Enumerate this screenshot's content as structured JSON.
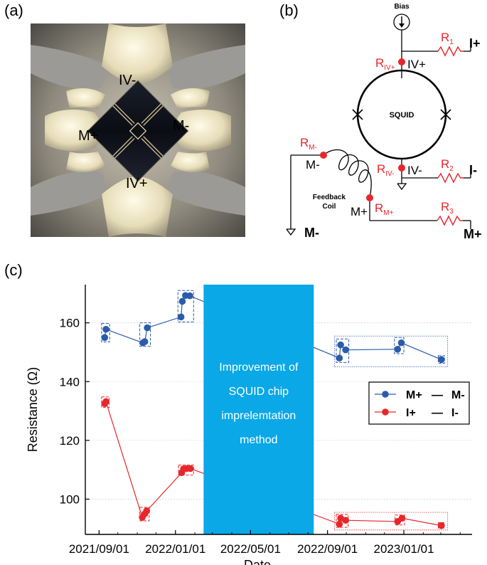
{
  "panels": {
    "a": "(a)",
    "b": "(b)",
    "c": "(c)"
  },
  "photo": {
    "labels": {
      "iv_minus": "IV-",
      "m_plus": "M+",
      "m_minus": "M-",
      "iv_plus": "IV+"
    }
  },
  "circuit": {
    "bias": "Bias",
    "squid": "SQUID",
    "iv_plus": "IV+",
    "iv_minus": "IV-",
    "r_iv_plus_main": "R",
    "r_iv_plus_sub": "IV+",
    "r_iv_minus_main": "R",
    "r_iv_minus_sub": "IV-",
    "r_m_minus_main": "R",
    "r_m_minus_sub": "M-",
    "r_m_plus_main": "R",
    "r_m_plus_sub": "M+",
    "m_minus_node": "M-",
    "m_plus_node": "M+",
    "feedback_line1": "Feedback",
    "feedback_line2": "Coil",
    "r1_main": "R",
    "r1_sub": "1",
    "r1_term": "I+",
    "r2_main": "R",
    "r2_sub": "2",
    "r2_term": "I-",
    "r3_main": "R",
    "r3_sub": "3",
    "r3_term": "M+",
    "m_minus_term": "M-",
    "accent": "#e8262b"
  },
  "chart_data": {
    "type": "scatter",
    "xlabel": "Date",
    "ylabel": "Resistance (Ω)",
    "xlim": [
      "2021-08-10",
      "2023-04-20"
    ],
    "ylim": [
      88,
      173
    ],
    "x_ticks": [
      "2021/09/01",
      "2022/01/01",
      "2022/05/01",
      "2022/09/01",
      "2023/01/01"
    ],
    "y_ticks": [
      100,
      120,
      140,
      160
    ],
    "grid": true,
    "legend_position": "center-right",
    "legend": [
      {
        "a": "M+",
        "dash": "—",
        "b": "M-",
        "color": "#2a5caa"
      },
      {
        "a": "I+",
        "dash": "—",
        "b": "I-",
        "color": "#e8262b"
      }
    ],
    "annotation": {
      "lines": [
        "Improvement of",
        "SQUID chip",
        "imprelemtation",
        "method"
      ],
      "x_range": [
        "2022-02-15",
        "2022-08-10"
      ],
      "color": "#0aa8e6"
    },
    "series": [
      {
        "name": "M+ — M-",
        "color": "#2a5caa",
        "points": [
          [
            "2021-09-10",
            155.0
          ],
          [
            "2021-09-12",
            157.8
          ],
          [
            "2021-11-10",
            153.2
          ],
          [
            "2021-11-13",
            153.6
          ],
          [
            "2021-11-17",
            158.3
          ],
          [
            "2022-01-10",
            162.0
          ],
          [
            "2022-01-12",
            167.3
          ],
          [
            "2022-01-17",
            169.3
          ],
          [
            "2022-01-24",
            169.2
          ],
          [
            "2022-09-20",
            148.0
          ],
          [
            "2022-09-22",
            152.5
          ],
          [
            "2022-09-30",
            150.8
          ],
          [
            "2022-12-22",
            151.0
          ],
          [
            "2022-12-28",
            153.2
          ],
          [
            "2023-03-02",
            147.5
          ]
        ],
        "boxes": [
          [
            "2021-09-05",
            "2021-09-18",
            153.5,
            159.8
          ],
          [
            "2021-11-05",
            "2021-11-22",
            152.0,
            160.0
          ],
          [
            "2022-01-05",
            "2022-01-30",
            160.3,
            171.0
          ],
          [
            "2022-09-15",
            "2022-10-05",
            146.5,
            154.5
          ],
          [
            "2022-12-17",
            "2023-01-01",
            149.5,
            155.0
          ],
          [
            "2023-02-25",
            "2023-03-07",
            146.2,
            148.8
          ]
        ],
        "group_box": [
          "2022-09-12",
          "2023-03-12",
          145.0,
          155.5
        ]
      },
      {
        "name": "I+ — I-",
        "color": "#e8262b",
        "points": [
          [
            "2021-09-10",
            132.5
          ],
          [
            "2021-09-12",
            133.2
          ],
          [
            "2021-11-09",
            93.8
          ],
          [
            "2021-11-13",
            95.0
          ],
          [
            "2021-11-16",
            96.0
          ],
          [
            "2022-01-11",
            109.0
          ],
          [
            "2022-01-14",
            110.3
          ],
          [
            "2022-01-19",
            110.4
          ],
          [
            "2022-01-25",
            110.4
          ],
          [
            "2022-09-20",
            91.5
          ],
          [
            "2022-09-22",
            93.5
          ],
          [
            "2022-09-30",
            92.8
          ],
          [
            "2022-12-22",
            92.4
          ],
          [
            "2022-12-29",
            93.5
          ],
          [
            "2023-03-02",
            91.0
          ]
        ],
        "boxes": [
          [
            "2021-09-05",
            "2021-09-17",
            131.2,
            134.8
          ],
          [
            "2021-11-05",
            "2021-11-20",
            92.6,
            97.2
          ],
          [
            "2022-01-06",
            "2022-01-30",
            108.2,
            111.6
          ],
          [
            "2022-09-15",
            "2022-10-04",
            90.4,
            94.8
          ],
          [
            "2022-12-18",
            "2023-01-02",
            91.2,
            94.6
          ],
          [
            "2023-02-25",
            "2023-03-06",
            90.0,
            92.0
          ]
        ],
        "group_box": [
          "2022-09-12",
          "2023-03-12",
          89.5,
          95.5
        ]
      }
    ]
  }
}
